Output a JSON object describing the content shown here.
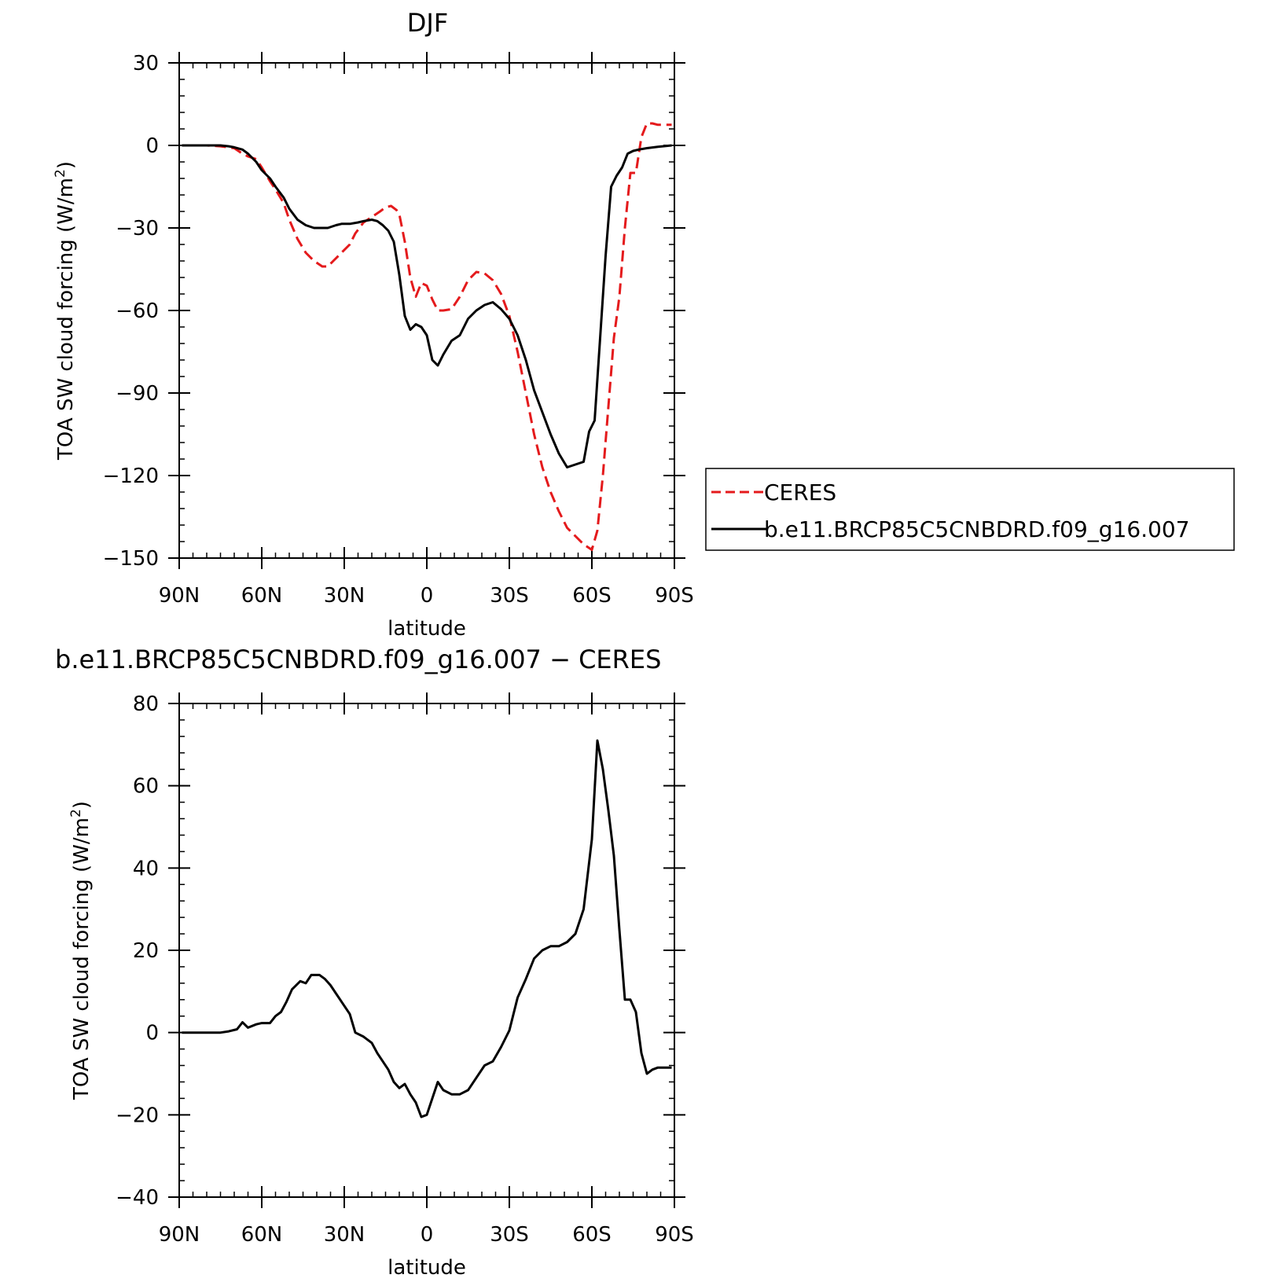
{
  "chart_data": [
    {
      "type": "line",
      "title": "DJF",
      "xlabel": "latitude",
      "ylabel": "TOA SW cloud forcing (W/m",
      "ylabel_sup": "2",
      "ylabel_close": ")",
      "xlim": [
        90,
        -90
      ],
      "ylim": [
        -150,
        30
      ],
      "yticks": [
        30,
        0,
        -30,
        -60,
        -90,
        -120,
        -150
      ],
      "ytick_labels": [
        "30",
        "0",
        "−30",
        "−60",
        "−90",
        "−120",
        "−150"
      ],
      "xticks": [
        90,
        60,
        30,
        0,
        -30,
        -60,
        -90
      ],
      "xtick_labels": [
        "90N",
        "60N",
        "30N",
        "0",
        "30S",
        "60S",
        "90S"
      ],
      "legend": {
        "placement": "right",
        "entries": [
          "CERES",
          "b.e11.BRCP85C5CNBDRD.f09_g16.007"
        ]
      },
      "series": [
        {
          "name": "CERES",
          "color": "#e41a1c",
          "dash": "dashed",
          "x": [
            89,
            85,
            80,
            75,
            70,
            67,
            65,
            62,
            60,
            57,
            55,
            52,
            50,
            47,
            44,
            41,
            38,
            36,
            34,
            31,
            28,
            26,
            23,
            20,
            17,
            15,
            13,
            11,
            10,
            8,
            6,
            4,
            2,
            0,
            -2,
            -4,
            -6,
            -9,
            -12,
            -15,
            -18,
            -21,
            -24,
            -27,
            -30,
            -33,
            -36,
            -39,
            -42,
            -45,
            -48,
            -51,
            -54,
            -57,
            -60,
            -62,
            -64,
            -66,
            -68,
            -70,
            -72,
            -74,
            -76,
            -78,
            -80,
            -82,
            -84,
            -86,
            -88,
            -89
          ],
          "y": [
            0,
            0,
            0,
            -0.3,
            -1,
            -3,
            -4,
            -5,
            -8,
            -13,
            -16,
            -21,
            -27,
            -34,
            -39,
            -42,
            -44,
            -44,
            -42,
            -39,
            -36,
            -32,
            -28,
            -26,
            -24,
            -22.5,
            -22,
            -23.5,
            -25,
            -35,
            -48,
            -55,
            -50,
            -51,
            -56,
            -60,
            -60,
            -59.5,
            -55,
            -49,
            -46,
            -46.5,
            -49,
            -54,
            -62,
            -75,
            -90,
            -105,
            -117,
            -126,
            -133,
            -139,
            -142,
            -145,
            -147,
            -140,
            -120,
            -95,
            -70,
            -55,
            -30,
            -10,
            -10,
            3,
            8,
            8,
            7.5,
            7.5,
            7.5,
            7.5
          ]
        },
        {
          "name": "b.e11.BRCP85C5CNBDRD.f09_g16.007",
          "color": "#000000",
          "dash": "solid",
          "x": [
            89,
            85,
            80,
            75,
            72,
            70,
            67,
            65,
            62,
            60,
            57,
            55,
            52,
            50,
            47,
            44,
            41,
            38,
            36,
            33,
            31,
            28,
            25,
            23,
            20,
            18,
            16,
            14,
            12,
            10,
            8,
            6,
            4,
            2,
            0,
            -2,
            -4,
            -6,
            -9,
            -12,
            -15,
            -18,
            -21,
            -24,
            -27,
            -30,
            -33,
            -36,
            -39,
            -42,
            -45,
            -48,
            -51,
            -54,
            -57,
            -59,
            -61,
            -63,
            -65,
            -67,
            -69,
            -71,
            -73,
            -75,
            -77,
            -80,
            -84,
            -89
          ],
          "y": [
            0,
            0,
            0,
            0,
            -0.3,
            -0.7,
            -1.5,
            -3,
            -6,
            -9,
            -12,
            -15,
            -19,
            -23,
            -27,
            -29,
            -30,
            -30,
            -30,
            -29,
            -28.5,
            -28.5,
            -28,
            -27.5,
            -27,
            -27.5,
            -29,
            -31,
            -35,
            -47,
            -62,
            -67,
            -65,
            -66,
            -69,
            -78,
            -80,
            -76,
            -71,
            -69,
            -63,
            -60,
            -58,
            -57,
            -59.5,
            -63,
            -69,
            -78,
            -89,
            -97,
            -105,
            -112,
            -117,
            -116,
            -115,
            -104,
            -100,
            -70,
            -40,
            -15,
            -11,
            -8,
            -3,
            -2,
            -1.5,
            -1,
            -0.5,
            0
          ]
        }
      ]
    },
    {
      "type": "line",
      "title": "b.e11.BRCP85C5CNBDRD.f09_g16.007 − CERES",
      "xlabel": "latitude",
      "ylabel": "TOA SW cloud forcing (W/m",
      "ylabel_sup": "2",
      "ylabel_close": ")",
      "xlim": [
        90,
        -90
      ],
      "ylim": [
        -40,
        80
      ],
      "yticks": [
        80,
        60,
        40,
        20,
        0,
        -20,
        -40
      ],
      "ytick_labels": [
        "80",
        "60",
        "40",
        "20",
        "0",
        "−20",
        "−40"
      ],
      "xticks": [
        90,
        60,
        30,
        0,
        -30,
        -60,
        -90
      ],
      "xtick_labels": [
        "90N",
        "60N",
        "30N",
        "0",
        "30S",
        "60S",
        "90S"
      ],
      "series": [
        {
          "color": "#000000",
          "dash": "solid",
          "x": [
            89,
            85,
            80,
            75,
            72,
            69,
            67,
            65,
            62,
            60,
            57,
            55,
            53,
            51,
            49,
            46,
            44,
            42,
            39,
            37,
            35,
            33,
            31,
            28,
            26,
            23,
            20,
            18,
            16,
            14,
            12,
            10,
            8,
            6,
            4,
            2,
            0,
            -2,
            -4,
            -6,
            -9,
            -12,
            -15,
            -18,
            -21,
            -24,
            -27,
            -30,
            -33,
            -36,
            -39,
            -42,
            -45,
            -48,
            -51,
            -54,
            -57,
            -60,
            -62,
            -64,
            -66,
            -68,
            -70,
            -72,
            -74,
            -76,
            -78,
            -80,
            -82,
            -84,
            -86,
            -88,
            -89
          ],
          "y": [
            0,
            0,
            0,
            0,
            0.3,
            0.8,
            2.5,
            1.2,
            2,
            2.3,
            2.3,
            4,
            5,
            7.5,
            10.5,
            12.5,
            12,
            14,
            14,
            13,
            11.5,
            9.5,
            7.5,
            4.5,
            0,
            -1,
            -2.5,
            -5,
            -7,
            -9,
            -12,
            -13.5,
            -12.5,
            -15,
            -17,
            -20.5,
            -20,
            -16,
            -12,
            -14,
            -15,
            -15,
            -14,
            -11,
            -8,
            -7,
            -3.5,
            0.5,
            8.5,
            13,
            18,
            20,
            21,
            21,
            22,
            24,
            30,
            47,
            71,
            64,
            54,
            43,
            25,
            8,
            8,
            5,
            -5,
            -10,
            -9,
            -8.5,
            -8.5,
            -8.5,
            -8.5
          ]
        }
      ]
    }
  ]
}
